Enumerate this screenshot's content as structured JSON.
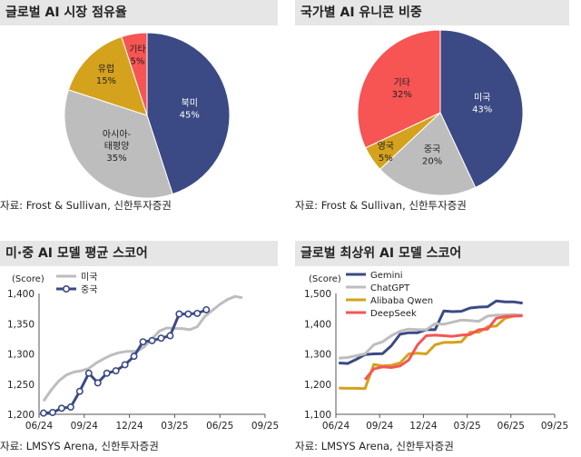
{
  "chart_data": [
    {
      "type": "pie",
      "title": "글로벌 AI 시장 점유율",
      "source": "자료: Frost & Sullivan, 신한투자증권",
      "slices": [
        {
          "name": "북미",
          "value": 45,
          "label": "45%",
          "color": "#3b4a84"
        },
        {
          "name": "아시아-\n태평양",
          "value": 35,
          "label": "35%",
          "color": "#bdbdbd"
        },
        {
          "name": "유럽",
          "value": 15,
          "label": "15%",
          "color": "#d4a21c"
        },
        {
          "name": "기타",
          "value": 5,
          "label": "5%",
          "color": "#f75454"
        }
      ]
    },
    {
      "type": "pie",
      "title": "국가별 AI 유니콘 비중",
      "source": "자료: Frost & Sullivan, 신한투자증권",
      "slices": [
        {
          "name": "미국",
          "value": 43,
          "label": "43%",
          "color": "#3b4a84"
        },
        {
          "name": "중국",
          "value": 20,
          "label": "20%",
          "color": "#bdbdbd"
        },
        {
          "name": "영국",
          "value": 5,
          "label": "5%",
          "color": "#d4a21c"
        },
        {
          "name": "기타",
          "value": 32,
          "label": "32%",
          "color": "#f75454"
        }
      ]
    },
    {
      "type": "line",
      "title": "미·중 AI 모델 평균 스코어",
      "source": "자료: LMSYS Arena, 신한투자증권",
      "ylabel": "(Score)",
      "ylim": [
        1200,
        1400
      ],
      "yticks": [
        "1,200",
        "1,250",
        "1,300",
        "1,350",
        "1,400"
      ],
      "xlim": [
        0,
        15
      ],
      "xticks": [
        {
          "x": 0,
          "label": "06/24"
        },
        {
          "x": 3,
          "label": "09/24"
        },
        {
          "x": 6,
          "label": "12/24"
        },
        {
          "x": 9,
          "label": "03/25"
        },
        {
          "x": 12,
          "label": "06/25"
        },
        {
          "x": 15,
          "label": "09/25"
        }
      ],
      "legend": "top-left",
      "series": [
        {
          "name": "미국",
          "color": "#bdbdbd",
          "marker": false,
          "points": [
            [
              0.3,
              1222
            ],
            [
              0.8,
              1240
            ],
            [
              1.3,
              1255
            ],
            [
              1.8,
              1265
            ],
            [
              2.3,
              1270
            ],
            [
              2.8,
              1272
            ],
            [
              3.3,
              1276
            ],
            [
              3.8,
              1285
            ],
            [
              4.3,
              1292
            ],
            [
              4.8,
              1298
            ],
            [
              5.3,
              1302
            ],
            [
              5.8,
              1304
            ],
            [
              6.5,
              1304
            ],
            [
              7.0,
              1312
            ],
            [
              7.5,
              1325
            ],
            [
              8.0,
              1338
            ],
            [
              8.5,
              1343
            ],
            [
              9.0,
              1342
            ],
            [
              9.5,
              1342
            ],
            [
              10.0,
              1340
            ],
            [
              10.5,
              1345
            ],
            [
              11.0,
              1362
            ],
            [
              11.5,
              1372
            ],
            [
              12.0,
              1382
            ],
            [
              12.5,
              1390
            ],
            [
              13.0,
              1395
            ],
            [
              13.5,
              1393
            ]
          ]
        },
        {
          "name": "중국",
          "color": "#3b4a84",
          "marker": true,
          "points": [
            [
              0.3,
              1202
            ],
            [
              0.9,
              1203
            ],
            [
              1.5,
              1210
            ],
            [
              2.1,
              1212
            ],
            [
              2.7,
              1238
            ],
            [
              3.3,
              1268
            ],
            [
              3.9,
              1252
            ],
            [
              4.5,
              1268
            ],
            [
              5.1,
              1272
            ],
            [
              5.7,
              1282
            ],
            [
              6.3,
              1296
            ],
            [
              6.9,
              1320
            ],
            [
              7.5,
              1322
            ],
            [
              8.1,
              1326
            ],
            [
              8.7,
              1330
            ],
            [
              9.3,
              1366
            ],
            [
              9.9,
              1366
            ],
            [
              10.5,
              1367
            ],
            [
              11.1,
              1373
            ]
          ]
        }
      ]
    },
    {
      "type": "line",
      "title": "글로벌 최상위 AI 모델 스코어",
      "source": "자료: LMSYS Arena, 신한투자증권",
      "ylabel": "(Score)",
      "ylim": [
        1100,
        1500
      ],
      "yticks": [
        "1,100",
        "1,200",
        "1,300",
        "1,400",
        "1,500"
      ],
      "xlim": [
        0,
        15
      ],
      "xticks": [
        {
          "x": 0,
          "label": "06/24"
        },
        {
          "x": 3,
          "label": "09/24"
        },
        {
          "x": 6,
          "label": "12/24"
        },
        {
          "x": 9,
          "label": "03/25"
        },
        {
          "x": 12,
          "label": "06/25"
        },
        {
          "x": 15,
          "label": "09/25"
        }
      ],
      "legend": "top-left",
      "series": [
        {
          "name": "Gemini",
          "color": "#3b4a84",
          "points": [
            [
              0.2,
              1270
            ],
            [
              0.8,
              1268
            ],
            [
              1.4,
              1282
            ],
            [
              2.0,
              1298
            ],
            [
              2.6,
              1300
            ],
            [
              3.2,
              1301
            ],
            [
              3.8,
              1327
            ],
            [
              4.4,
              1365
            ],
            [
              5.0,
              1370
            ],
            [
              5.6,
              1370
            ],
            [
              6.2,
              1380
            ],
            [
              6.8,
              1380
            ],
            [
              7.4,
              1442
            ],
            [
              8.0,
              1440
            ],
            [
              8.6,
              1441
            ],
            [
              9.2,
              1452
            ],
            [
              9.8,
              1455
            ],
            [
              10.4,
              1456
            ],
            [
              11.0,
              1475
            ],
            [
              11.6,
              1472
            ],
            [
              12.2,
              1472
            ],
            [
              12.8,
              1468
            ]
          ]
        },
        {
          "name": "ChatGPT",
          "color": "#bdbdbd",
          "points": [
            [
              0.2,
              1286
            ],
            [
              0.8,
              1288
            ],
            [
              1.4,
              1294
            ],
            [
              2.0,
              1300
            ],
            [
              2.6,
              1330
            ],
            [
              3.2,
              1340
            ],
            [
              3.8,
              1360
            ],
            [
              4.4,
              1375
            ],
            [
              5.0,
              1382
            ],
            [
              5.6,
              1380
            ],
            [
              6.2,
              1380
            ],
            [
              6.8,
              1400
            ],
            [
              7.4,
              1398
            ],
            [
              8.0,
              1405
            ],
            [
              8.6,
              1412
            ],
            [
              9.2,
              1410
            ],
            [
              9.8,
              1408
            ],
            [
              10.4,
              1425
            ],
            [
              11.0,
              1428
            ],
            [
              11.6,
              1429
            ],
            [
              12.2,
              1430
            ],
            [
              12.8,
              1428
            ]
          ]
        },
        {
          "name": "Alibaba Qwen",
          "color": "#d4a21c",
          "points": [
            [
              0.2,
              1187
            ],
            [
              0.8,
              1186
            ],
            [
              1.4,
              1186
            ],
            [
              2.0,
              1185
            ],
            [
              2.6,
              1265
            ],
            [
              3.2,
              1260
            ],
            [
              3.8,
              1262
            ],
            [
              4.4,
              1270
            ],
            [
              5.0,
              1300
            ],
            [
              5.6,
              1302
            ],
            [
              6.2,
              1300
            ],
            [
              6.8,
              1330
            ],
            [
              7.4,
              1338
            ],
            [
              8.0,
              1338
            ],
            [
              8.6,
              1340
            ],
            [
              9.2,
              1372
            ],
            [
              9.8,
              1372
            ],
            [
              10.4,
              1390
            ],
            [
              11.0,
              1392
            ],
            [
              11.6,
              1418
            ],
            [
              12.2,
              1425
            ]
          ]
        },
        {
          "name": "DeepSeek",
          "color": "#f75454",
          "points": [
            [
              2.0,
              1215
            ],
            [
              2.6,
              1250
            ],
            [
              3.2,
              1257
            ],
            [
              3.8,
              1255
            ],
            [
              4.4,
              1260
            ],
            [
              5.0,
              1280
            ],
            [
              5.6,
              1330
            ],
            [
              6.2,
              1360
            ],
            [
              6.8,
              1362
            ],
            [
              7.4,
              1360
            ],
            [
              8.0,
              1358
            ],
            [
              8.6,
              1362
            ],
            [
              9.2,
              1364
            ],
            [
              9.8,
              1380
            ],
            [
              10.4,
              1382
            ],
            [
              11.0,
              1418
            ],
            [
              11.6,
              1424
            ],
            [
              12.2,
              1425
            ],
            [
              12.8,
              1426
            ]
          ]
        }
      ]
    }
  ]
}
